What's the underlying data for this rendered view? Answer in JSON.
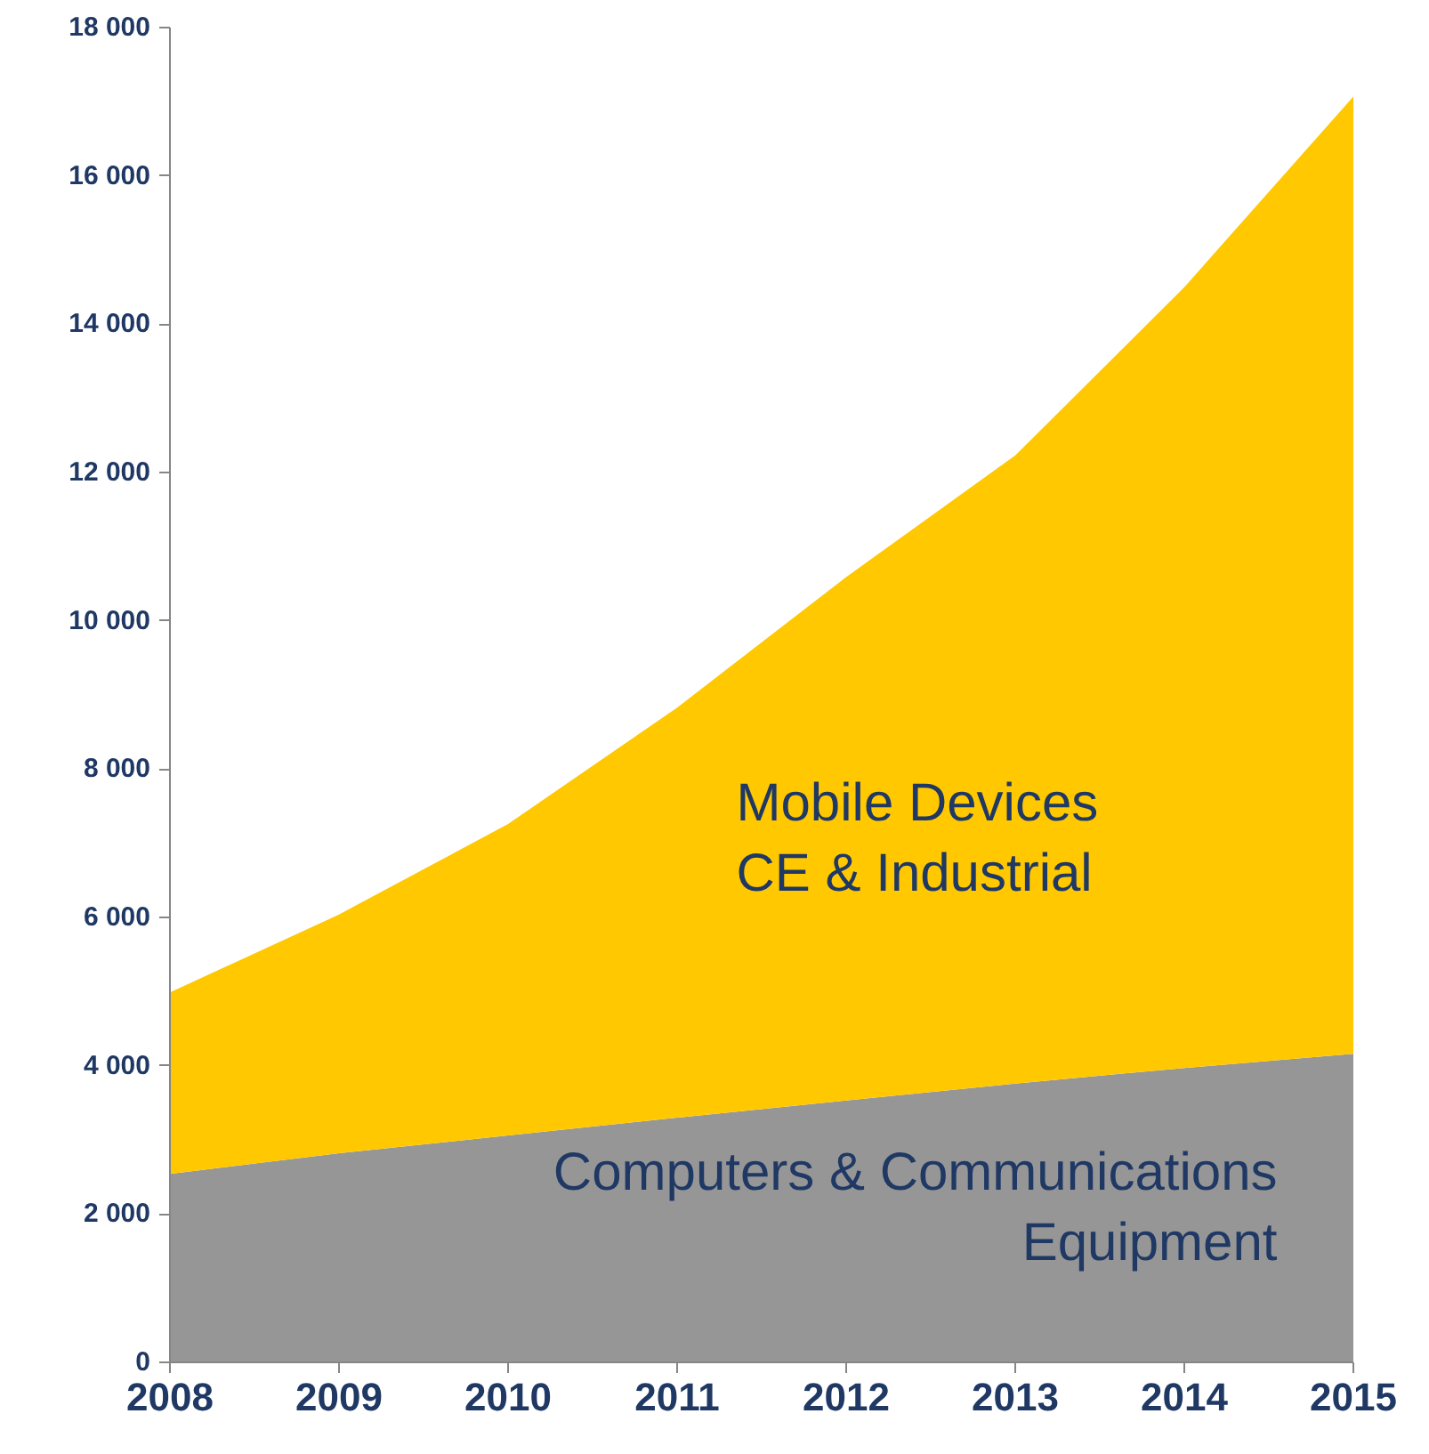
{
  "chart_data": {
    "type": "area",
    "stacked": true,
    "x": [
      2008,
      2009,
      2010,
      2011,
      2012,
      2013,
      2014,
      2015
    ],
    "series": [
      {
        "name": "Computers & Communications\nEquipment",
        "color": "#969696",
        "values": [
          2540,
          2820,
          3060,
          3300,
          3530,
          3760,
          3970,
          4160
        ]
      },
      {
        "name": "Mobile Devices\nCE & Industrial",
        "color": "#ffc800",
        "values": [
          2450,
          3220,
          4200,
          5530,
          7060,
          8470,
          10530,
          12910
        ]
      }
    ],
    "xlim": [
      2008,
      2015
    ],
    "xticks": [
      2008,
      2009,
      2010,
      2011,
      2012,
      2013,
      2014,
      2015
    ],
    "ylim": [
      0,
      18000
    ],
    "yticks": [
      0,
      {
        "value": 2000,
        "label": "2 000"
      },
      {
        "value": 4000,
        "label": "4 000"
      },
      {
        "value": 6000,
        "label": "6 000"
      },
      {
        "value": 8000,
        "label": "8 000"
      },
      {
        "value": 10000,
        "label": "10 000"
      },
      {
        "value": 12000,
        "label": "12 000"
      },
      {
        "value": 14000,
        "label": "14 000"
      },
      {
        "value": 16000,
        "label": "16 000"
      },
      {
        "value": 18000,
        "label": "18 000"
      }
    ],
    "grid": false
  }
}
